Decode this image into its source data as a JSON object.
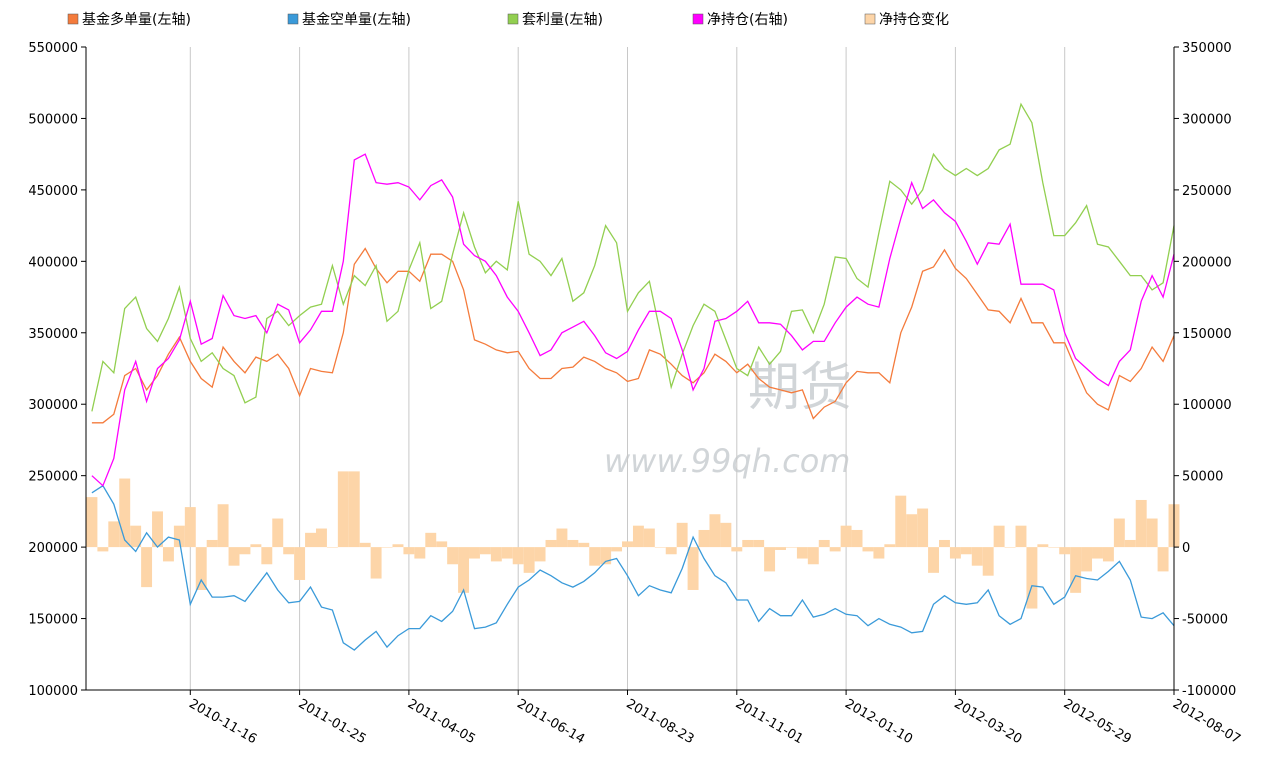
{
  "chart_data": {
    "type": "combo",
    "categories": [
      null,
      null,
      null,
      null,
      null,
      null,
      null,
      null,
      null,
      "2010-11-16",
      null,
      null,
      null,
      null,
      null,
      null,
      null,
      null,
      null,
      "2011-01-25",
      null,
      null,
      null,
      null,
      null,
      null,
      null,
      null,
      null,
      "2011-04-05",
      null,
      null,
      null,
      null,
      null,
      null,
      null,
      null,
      null,
      "2011-06-14",
      null,
      null,
      null,
      null,
      null,
      null,
      null,
      null,
      null,
      "2011-08-23",
      null,
      null,
      null,
      null,
      null,
      null,
      null,
      null,
      null,
      "2011-11-01",
      null,
      null,
      null,
      null,
      null,
      null,
      null,
      null,
      null,
      "2012-01-10",
      null,
      null,
      null,
      null,
      null,
      null,
      null,
      null,
      null,
      "2012-03-20",
      null,
      null,
      null,
      null,
      null,
      null,
      null,
      null,
      null,
      "2012-05-29",
      null,
      null,
      null,
      null,
      null,
      null,
      null,
      null,
      null,
      "2012-08-07"
    ],
    "ylim": [
      100000,
      550000
    ],
    "yticks": [
      100000,
      150000,
      200000,
      250000,
      300000,
      350000,
      400000,
      450000,
      500000,
      550000
    ],
    "y2lim": [
      -100000,
      350000
    ],
    "y2ticks": [
      -100000,
      -50000,
      0,
      50000,
      100000,
      150000,
      200000,
      250000,
      300000,
      350000
    ],
    "watermark": [
      "期货",
      "www.99qh.com"
    ],
    "series": [
      {
        "name": "基金多单量(左轴)",
        "color": "#f47b3c",
        "kind": "line",
        "axis": "y",
        "values": [
          287000,
          287000,
          293000,
          320000,
          325000,
          310000,
          320000,
          335000,
          347000,
          330000,
          318000,
          312000,
          340000,
          330000,
          322000,
          333000,
          330000,
          335000,
          325000,
          306000,
          325000,
          323000,
          322000,
          350000,
          398000,
          409000,
          395000,
          385000,
          393000,
          393000,
          386000,
          405000,
          405000,
          400000,
          380000,
          345000,
          342000,
          338000,
          336000,
          337000,
          325000,
          318000,
          318000,
          325000,
          326000,
          333000,
          330000,
          325000,
          322000,
          316000,
          318000,
          338000,
          335000,
          328000,
          320000,
          315000,
          322000,
          335000,
          330000,
          322000,
          328000,
          318000,
          312000,
          310000,
          308000,
          310000,
          290000,
          298000,
          302000,
          315000,
          323000,
          322000,
          322000,
          315000,
          350000,
          368000,
          393000,
          396000,
          408000,
          395000,
          388000,
          377000,
          366000,
          365000,
          357000,
          374000,
          357000,
          357000,
          343000,
          343000,
          325000,
          308000,
          300000,
          296000,
          320000,
          316000,
          325000,
          340000,
          330000,
          348000
        ]
      },
      {
        "name": "基金空单量(左轴)",
        "color": "#3a9ad9",
        "kind": "line",
        "axis": "y",
        "values": [
          238000,
          243000,
          230000,
          205000,
          197000,
          210000,
          200000,
          207000,
          205000,
          160000,
          177000,
          165000,
          165000,
          166000,
          162000,
          172000,
          182000,
          170000,
          161000,
          162000,
          172000,
          158000,
          156000,
          133000,
          128000,
          135000,
          141000,
          130000,
          138000,
          143000,
          143000,
          152000,
          148000,
          155000,
          170000,
          143000,
          144000,
          147000,
          160000,
          172000,
          177000,
          184000,
          180000,
          175000,
          172000,
          176000,
          182000,
          190000,
          192000,
          180000,
          166000,
          173000,
          170000,
          168000,
          185000,
          207000,
          192000,
          180000,
          175000,
          163000,
          163000,
          148000,
          157000,
          152000,
          152000,
          163000,
          151000,
          153000,
          157000,
          153000,
          152000,
          145000,
          150000,
          146000,
          144000,
          140000,
          141000,
          160000,
          166000,
          161000,
          160000,
          161000,
          170000,
          152000,
          146000,
          150000,
          173000,
          172000,
          160000,
          165000,
          180000,
          178000,
          177000,
          183000,
          190000,
          177000,
          151000,
          150000,
          154000,
          145000
        ]
      },
      {
        "name": "套利量(左轴)",
        "color": "#92cf50",
        "kind": "line",
        "axis": "y",
        "values": [
          295000,
          330000,
          322000,
          367000,
          375000,
          353000,
          344000,
          360000,
          382000,
          346000,
          330000,
          336000,
          325000,
          320000,
          301000,
          305000,
          360000,
          365000,
          355000,
          362000,
          368000,
          370000,
          397000,
          370000,
          390000,
          383000,
          397000,
          358000,
          365000,
          394000,
          413000,
          367000,
          372000,
          405000,
          434000,
          410000,
          392000,
          400000,
          394000,
          442000,
          405000,
          400000,
          390000,
          402000,
          372000,
          378000,
          397000,
          425000,
          413000,
          365000,
          378000,
          386000,
          350000,
          312000,
          335000,
          355000,
          370000,
          365000,
          345000,
          325000,
          320000,
          340000,
          328000,
          337000,
          365000,
          366000,
          350000,
          370000,
          403000,
          402000,
          388000,
          382000,
          420000,
          456000,
          450000,
          440000,
          450000,
          475000,
          465000,
          460000,
          465000,
          460000,
          465000,
          478000,
          482000,
          510000,
          497000,
          455000,
          418000,
          418000,
          427000,
          439000,
          412000,
          410000,
          400000,
          390000,
          390000,
          380000,
          385000,
          425000
        ]
      },
      {
        "name": "净持仓(右轴)",
        "color": "#ff00ff",
        "kind": "line",
        "axis": "y2",
        "values": [
          50000,
          43000,
          62000,
          110000,
          130000,
          102000,
          125000,
          132000,
          145000,
          172000,
          142000,
          146000,
          176000,
          162000,
          160000,
          162000,
          150000,
          170000,
          166000,
          143000,
          152000,
          165000,
          165000,
          200000,
          271000,
          275000,
          255000,
          254000,
          255000,
          252000,
          243000,
          253000,
          257000,
          245000,
          212000,
          204000,
          200000,
          190000,
          175000,
          165000,
          150000,
          134000,
          138000,
          150000,
          154000,
          158000,
          148000,
          136000,
          132000,
          137000,
          152000,
          165000,
          165000,
          160000,
          138000,
          110000,
          125000,
          158000,
          160000,
          165000,
          172000,
          157000,
          157000,
          156000,
          148000,
          138000,
          144000,
          144000,
          157000,
          168000,
          175000,
          170000,
          168000,
          202000,
          230000,
          255000,
          237000,
          243000,
          234000,
          228000,
          214000,
          198000,
          213000,
          212000,
          226000,
          184000,
          184000,
          184000,
          180000,
          150000,
          132000,
          125000,
          118000,
          113000,
          130000,
          138000,
          172000,
          190000,
          175000,
          205000
        ]
      },
      {
        "name": "净持仓变化",
        "color": "#fdd5a8",
        "kind": "bar",
        "axis": "y2",
        "values": [
          35000,
          -3000,
          18000,
          48000,
          15000,
          -28000,
          25000,
          -10000,
          15000,
          28000,
          -30000,
          5000,
          30000,
          -13000,
          -5000,
          2000,
          -12000,
          20000,
          -5000,
          -23000,
          10000,
          13000,
          0,
          53000,
          53000,
          3000,
          -22000,
          0,
          2000,
          -5000,
          -8000,
          10000,
          4000,
          -12000,
          -32000,
          -8000,
          -5000,
          -10000,
          -8000,
          -12000,
          -18000,
          -10000,
          5000,
          13000,
          5000,
          3000,
          -13000,
          -12000,
          -3000,
          4000,
          15000,
          13000,
          0,
          -5000,
          17000,
          -30000,
          12000,
          23000,
          17000,
          -3000,
          5000,
          5000,
          -17000,
          -2000,
          0,
          -8000,
          -12000,
          5000,
          -3000,
          15000,
          12000,
          -3000,
          -8000,
          2000,
          36000,
          23000,
          27000,
          -18000,
          5000,
          -8000,
          -5000,
          -13000,
          -20000,
          15000,
          0,
          15000,
          -43000,
          2000,
          0,
          -5000,
          -32000,
          -17000,
          -8000,
          -10000,
          20000,
          5000,
          33000,
          20000,
          -17000,
          30000
        ]
      }
    ]
  }
}
